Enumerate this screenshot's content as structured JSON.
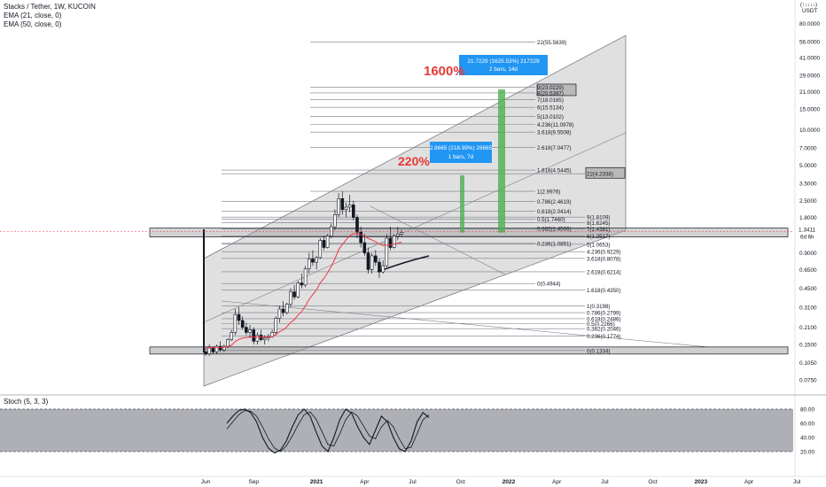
{
  "header": {
    "title": "Stacks / Tether, 1W, KUCOIN",
    "ema21": "EMA (21, close, 0)",
    "ema50": "EMA (50, close, 0)"
  },
  "price_axis": {
    "unit_top": "(↑↓↓↓↓)",
    "unit": "USDT",
    "current_price": "1.3411",
    "countdown": "6d 6h",
    "current_bg": "#131722"
  },
  "stoch": {
    "label": "Stoch (5, 3, 3)",
    "ticks": [
      "80.00",
      "60.00",
      "40.00",
      "20.00"
    ]
  },
  "colors": {
    "candle": "#131722",
    "ema": "#f23645",
    "target_green": "#4caf50",
    "callout_bg": "#2196f3",
    "callout_red": "#e53935",
    "channel_fill": "#9e9e9e"
  },
  "annotations": {
    "big_pct": "1600%",
    "small_pct": "220%",
    "measure_big_line1": "21.7229 (1625.53%) 217229",
    "measure_big_line2": "2 bars, 14d",
    "measure_small_line1": "2.8665 (218.99%) 28665",
    "measure_small_line2": "1 bars, 7d"
  },
  "chart_data": [
    {
      "type": "candlestick",
      "title": "Stacks / Tether, 1W, KUCOIN",
      "y_scale": "log",
      "ylim": [
        0.06,
        120
      ],
      "y_ticks": [
        80,
        56,
        41,
        29,
        21,
        15,
        10,
        7,
        5,
        3.5,
        2.5,
        1.8,
        0.9,
        0.65,
        0.45,
        0.31,
        0.21,
        0.15,
        0.105,
        0.075
      ],
      "y_tick_labels": [
        "80.0000",
        "56.0000",
        "41.0000",
        "29.0000",
        "21.0000",
        "15.0000",
        "10.0000",
        "7.0000",
        "5.0000",
        "3.5000",
        "2.5000",
        "1.8000",
        "0.9000",
        "0.6500",
        "0.4500",
        "0.3100",
        "0.2100",
        "0.1500",
        "0.1050",
        "0.0750"
      ],
      "x_tick_labels": [
        "Jun",
        "Sep",
        "2021",
        "Apr",
        "Jul",
        "Oct",
        "2022",
        "Apr",
        "Jul",
        "Oct",
        "2023",
        "Apr",
        "Jul"
      ],
      "x_tick_week_index": [
        0,
        13,
        30,
        43,
        56,
        69,
        82,
        95,
        108,
        121,
        134,
        147,
        160
      ],
      "weekly_ohlc": [
        [
          0.13,
          0.14,
          0.12,
          0.125
        ],
        [
          0.125,
          0.15,
          0.12,
          0.14
        ],
        [
          0.14,
          0.145,
          0.125,
          0.13
        ],
        [
          0.13,
          0.15,
          0.125,
          0.145
        ],
        [
          0.145,
          0.16,
          0.13,
          0.135
        ],
        [
          0.135,
          0.15,
          0.13,
          0.145
        ],
        [
          0.145,
          0.17,
          0.14,
          0.165
        ],
        [
          0.165,
          0.2,
          0.16,
          0.19
        ],
        [
          0.19,
          0.3,
          0.18,
          0.27
        ],
        [
          0.27,
          0.31,
          0.22,
          0.24
        ],
        [
          0.24,
          0.26,
          0.2,
          0.21
        ],
        [
          0.21,
          0.23,
          0.18,
          0.19
        ],
        [
          0.19,
          0.22,
          0.17,
          0.2
        ],
        [
          0.2,
          0.21,
          0.15,
          0.16
        ],
        [
          0.16,
          0.19,
          0.15,
          0.18
        ],
        [
          0.18,
          0.2,
          0.16,
          0.165
        ],
        [
          0.165,
          0.18,
          0.15,
          0.17
        ],
        [
          0.17,
          0.185,
          0.16,
          0.175
        ],
        [
          0.175,
          0.2,
          0.17,
          0.19
        ],
        [
          0.19,
          0.26,
          0.18,
          0.25
        ],
        [
          0.25,
          0.32,
          0.23,
          0.3
        ],
        [
          0.3,
          0.35,
          0.26,
          0.28
        ],
        [
          0.28,
          0.34,
          0.27,
          0.33
        ],
        [
          0.33,
          0.45,
          0.31,
          0.42
        ],
        [
          0.42,
          0.48,
          0.36,
          0.38
        ],
        [
          0.38,
          0.52,
          0.37,
          0.5
        ],
        [
          0.5,
          0.6,
          0.45,
          0.48
        ],
        [
          0.48,
          0.7,
          0.46,
          0.66
        ],
        [
          0.66,
          0.9,
          0.6,
          0.8
        ],
        [
          0.8,
          0.95,
          0.7,
          0.75
        ],
        [
          0.75,
          0.85,
          0.65,
          0.82
        ],
        [
          0.82,
          1.2,
          0.8,
          1.15
        ],
        [
          1.15,
          1.25,
          0.95,
          1.0
        ],
        [
          1.0,
          1.3,
          0.98,
          1.25
        ],
        [
          1.25,
          1.6,
          1.2,
          1.5
        ],
        [
          1.5,
          2.1,
          1.4,
          1.9
        ],
        [
          1.9,
          2.9,
          1.8,
          2.6
        ],
        [
          2.6,
          3.0,
          1.9,
          2.1
        ],
        [
          2.1,
          2.4,
          1.8,
          2.2
        ],
        [
          2.2,
          2.8,
          2.0,
          2.3
        ],
        [
          2.3,
          2.5,
          1.7,
          1.8
        ],
        [
          1.8,
          1.9,
          1.2,
          1.35
        ],
        [
          1.35,
          1.5,
          1.0,
          1.1
        ],
        [
          1.1,
          1.3,
          0.85,
          0.9
        ],
        [
          0.9,
          1.0,
          0.6,
          0.65
        ],
        [
          0.65,
          0.9,
          0.6,
          0.85
        ],
        [
          0.85,
          0.95,
          0.7,
          0.75
        ],
        [
          0.75,
          0.8,
          0.55,
          0.62
        ],
        [
          0.62,
          0.78,
          0.6,
          0.7
        ],
        [
          0.7,
          1.3,
          0.68,
          1.2
        ],
        [
          1.2,
          1.5,
          0.95,
          1.0
        ],
        [
          1.0,
          1.3,
          0.98,
          1.25
        ],
        [
          1.25,
          1.5,
          1.15,
          1.3
        ],
        [
          1.3,
          1.42,
          1.25,
          1.34
        ]
      ],
      "ema21": [
        0.14,
        0.141,
        0.141,
        0.142,
        0.142,
        0.142,
        0.144,
        0.148,
        0.159,
        0.166,
        0.17,
        0.172,
        0.174,
        0.173,
        0.174,
        0.173,
        0.173,
        0.174,
        0.175,
        0.182,
        0.193,
        0.2,
        0.212,
        0.231,
        0.244,
        0.267,
        0.286,
        0.319,
        0.363,
        0.398,
        0.436,
        0.5,
        0.546,
        0.61,
        0.69,
        0.8,
        0.96,
        1.06,
        1.16,
        1.26,
        1.31,
        1.31,
        1.29,
        1.25,
        1.19,
        1.16,
        1.12,
        1.07,
        1.04,
        1.05,
        1.05,
        1.07,
        1.09,
        1.11
      ],
      "fib_levels": [
        {
          "label": "22(55.5639)",
          "value": 55.5639
        },
        {
          "label": "9(23.0229)",
          "value": 23.0229
        },
        {
          "label": "8(20.5397)",
          "value": 20.5397
        },
        {
          "label": "7(18.0165)",
          "value": 18.0165
        },
        {
          "label": "6(15.5134)",
          "value": 15.5134
        },
        {
          "label": "5(13.0102)",
          "value": 13.0102
        },
        {
          "label": "4.236(11.0978)",
          "value": 11.0978
        },
        {
          "label": "3.618(9.5508)",
          "value": 9.5508
        },
        {
          "label": "2.618(7.0477)",
          "value": 7.0477
        },
        {
          "label": "1.618(4.5445)",
          "value": 4.5445
        },
        {
          "label": "22(4.2338)",
          "value": 4.2338
        },
        {
          "label": "1(2.9976)",
          "value": 2.9976
        },
        {
          "label": "0.786(2.4619)",
          "value": 2.4619
        },
        {
          "label": "0.618(2.0414)",
          "value": 2.0414
        },
        {
          "label": "0.5(1.7460)",
          "value": 1.746
        },
        {
          "label": "0.382(1.4506)",
          "value": 1.4506
        },
        {
          "label": "9(1.8109)",
          "value": 1.8109
        },
        {
          "label": "8(1.6245)",
          "value": 1.6245
        },
        {
          "label": "7(1.4381)",
          "value": 1.4381
        },
        {
          "label": "6(1.2517)",
          "value": 1.2517
        },
        {
          "label": "0.236(1.0851)",
          "value": 1.0851
        },
        {
          "label": "5(1.0653)",
          "value": 1.0653
        },
        {
          "label": "4.236(0.9229)",
          "value": 0.9229
        },
        {
          "label": "3.618(0.8078)",
          "value": 0.8078
        },
        {
          "label": "2.618(0.6214)",
          "value": 0.6214
        },
        {
          "label": "0(0.4944)",
          "value": 0.4944
        },
        {
          "label": "1.618(0.4350)",
          "value": 0.435
        },
        {
          "label": "1(0.3198)",
          "value": 0.3198
        },
        {
          "label": "0.786(0.2799)",
          "value": 0.2799
        },
        {
          "label": "0.618(0.2486)",
          "value": 0.2486
        },
        {
          "label": "0.5(0.2266)",
          "value": 0.2266
        },
        {
          "label": "0.382(0.2046)",
          "value": 0.2046
        },
        {
          "label": "0.236(0.1774)",
          "value": 0.1774
        },
        {
          "label": "0(0.1334)",
          "value": 0.1334
        }
      ],
      "stoch_k": [
        60,
        70,
        78,
        80,
        75,
        62,
        40,
        25,
        18,
        22,
        35,
        55,
        72,
        80,
        70,
        48,
        28,
        20,
        40,
        65,
        80,
        74,
        55,
        40,
        30,
        50,
        70,
        62,
        40,
        24,
        20,
        35,
        62,
        75,
        68
      ],
      "stoch_d": [
        52,
        62,
        72,
        78,
        77,
        70,
        55,
        38,
        25,
        20,
        28,
        42,
        58,
        72,
        76,
        66,
        48,
        30,
        28,
        45,
        65,
        76,
        70,
        56,
        42,
        38,
        55,
        64,
        55,
        38,
        24,
        26,
        45,
        65,
        72
      ]
    }
  ]
}
